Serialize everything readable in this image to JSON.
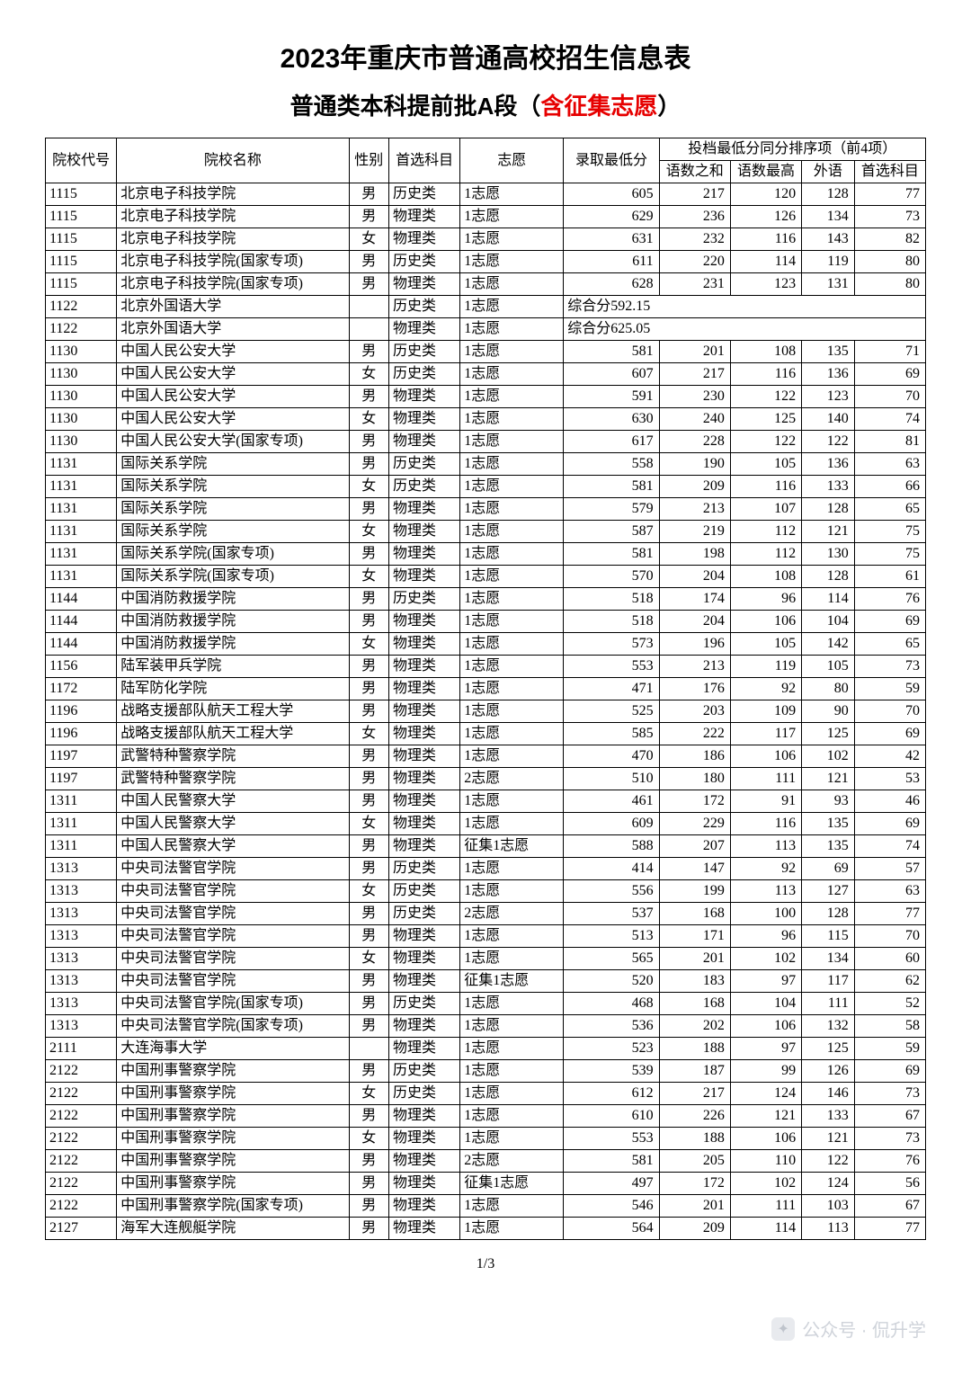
{
  "title_line1": "2023年重庆市普通高校招生信息表",
  "title_line2_prefix": "普通类本科提前批A段（",
  "title_line2_red": "含征集志愿",
  "title_line2_suffix": "）",
  "page_footer": "1/3",
  "watermark_text": "公众号 · 侃升学",
  "header": {
    "h_code": "院校代号",
    "h_name": "院校名称",
    "h_sex": "性别",
    "h_subject": "首选科目",
    "h_wish": "志愿",
    "h_score": "录取最低分",
    "h_tiebreak": "投档最低分同分排序项（前4项）",
    "h_s1": "语数之和",
    "h_s2": "语数最高",
    "h_s3": "外语",
    "h_s4": "首选科目"
  },
  "table": {
    "columns": [
      "code",
      "name",
      "sex",
      "subject",
      "wish",
      "score",
      "s1",
      "s2",
      "s3",
      "s4"
    ],
    "col_align": [
      "lft",
      "lft",
      "ctr",
      "lft",
      "lft",
      "num",
      "num",
      "num",
      "num",
      "num"
    ],
    "rows": [
      [
        "1115",
        "北京电子科技学院",
        "男",
        "历史类",
        "1志愿",
        "605",
        "217",
        "120",
        "128",
        "77"
      ],
      [
        "1115",
        "北京电子科技学院",
        "男",
        "物理类",
        "1志愿",
        "629",
        "236",
        "126",
        "134",
        "73"
      ],
      [
        "1115",
        "北京电子科技学院",
        "女",
        "物理类",
        "1志愿",
        "631",
        "232",
        "116",
        "143",
        "82"
      ],
      [
        "1115",
        "北京电子科技学院(国家专项)",
        "男",
        "历史类",
        "1志愿",
        "611",
        "220",
        "114",
        "119",
        "80"
      ],
      [
        "1115",
        "北京电子科技学院(国家专项)",
        "男",
        "物理类",
        "1志愿",
        "628",
        "231",
        "123",
        "131",
        "80"
      ],
      [
        "1130",
        "中国人民公安大学",
        "男",
        "历史类",
        "1志愿",
        "581",
        "201",
        "108",
        "135",
        "71"
      ],
      [
        "1130",
        "中国人民公安大学",
        "女",
        "历史类",
        "1志愿",
        "607",
        "217",
        "116",
        "136",
        "69"
      ],
      [
        "1130",
        "中国人民公安大学",
        "男",
        "物理类",
        "1志愿",
        "591",
        "230",
        "122",
        "123",
        "70"
      ],
      [
        "1130",
        "中国人民公安大学",
        "女",
        "物理类",
        "1志愿",
        "630",
        "240",
        "125",
        "140",
        "74"
      ],
      [
        "1130",
        "中国人民公安大学(国家专项)",
        "男",
        "物理类",
        "1志愿",
        "617",
        "228",
        "122",
        "122",
        "81"
      ],
      [
        "1131",
        "国际关系学院",
        "男",
        "历史类",
        "1志愿",
        "558",
        "190",
        "105",
        "136",
        "63"
      ],
      [
        "1131",
        "国际关系学院",
        "女",
        "历史类",
        "1志愿",
        "581",
        "209",
        "116",
        "133",
        "66"
      ],
      [
        "1131",
        "国际关系学院",
        "男",
        "物理类",
        "1志愿",
        "579",
        "213",
        "107",
        "128",
        "65"
      ],
      [
        "1131",
        "国际关系学院",
        "女",
        "物理类",
        "1志愿",
        "587",
        "219",
        "112",
        "121",
        "75"
      ],
      [
        "1131",
        "国际关系学院(国家专项)",
        "男",
        "物理类",
        "1志愿",
        "581",
        "198",
        "112",
        "130",
        "75"
      ],
      [
        "1131",
        "国际关系学院(国家专项)",
        "女",
        "物理类",
        "1志愿",
        "570",
        "204",
        "108",
        "128",
        "61"
      ],
      [
        "1144",
        "中国消防救援学院",
        "男",
        "历史类",
        "1志愿",
        "518",
        "174",
        "96",
        "114",
        "76"
      ],
      [
        "1144",
        "中国消防救援学院",
        "男",
        "物理类",
        "1志愿",
        "518",
        "204",
        "106",
        "104",
        "69"
      ],
      [
        "1144",
        "中国消防救援学院",
        "女",
        "物理类",
        "1志愿",
        "573",
        "196",
        "105",
        "142",
        "65"
      ],
      [
        "1156",
        "陆军装甲兵学院",
        "男",
        "物理类",
        "1志愿",
        "553",
        "213",
        "119",
        "105",
        "73"
      ],
      [
        "1172",
        "陆军防化学院",
        "男",
        "物理类",
        "1志愿",
        "471",
        "176",
        "92",
        "80",
        "59"
      ],
      [
        "1196",
        "战略支援部队航天工程大学",
        "男",
        "物理类",
        "1志愿",
        "525",
        "203",
        "109",
        "90",
        "70"
      ],
      [
        "1196",
        "战略支援部队航天工程大学",
        "女",
        "物理类",
        "1志愿",
        "585",
        "222",
        "117",
        "125",
        "69"
      ],
      [
        "1197",
        "武警特种警察学院",
        "男",
        "物理类",
        "1志愿",
        "470",
        "186",
        "106",
        "102",
        "42"
      ],
      [
        "1197",
        "武警特种警察学院",
        "男",
        "物理类",
        "2志愿",
        "510",
        "180",
        "111",
        "121",
        "53"
      ],
      [
        "1311",
        "中国人民警察大学",
        "男",
        "物理类",
        "1志愿",
        "461",
        "172",
        "91",
        "93",
        "46"
      ],
      [
        "1311",
        "中国人民警察大学",
        "女",
        "物理类",
        "1志愿",
        "609",
        "229",
        "116",
        "135",
        "69"
      ],
      [
        "1311",
        "中国人民警察大学",
        "男",
        "物理类",
        "征集1志愿",
        "588",
        "207",
        "113",
        "135",
        "74"
      ],
      [
        "1313",
        "中央司法警官学院",
        "男",
        "历史类",
        "1志愿",
        "414",
        "147",
        "92",
        "69",
        "57"
      ],
      [
        "1313",
        "中央司法警官学院",
        "女",
        "历史类",
        "1志愿",
        "556",
        "199",
        "113",
        "127",
        "63"
      ],
      [
        "1313",
        "中央司法警官学院",
        "男",
        "历史类",
        "2志愿",
        "537",
        "168",
        "100",
        "128",
        "77"
      ],
      [
        "1313",
        "中央司法警官学院",
        "男",
        "物理类",
        "1志愿",
        "513",
        "171",
        "96",
        "115",
        "70"
      ],
      [
        "1313",
        "中央司法警官学院",
        "女",
        "物理类",
        "1志愿",
        "565",
        "201",
        "102",
        "134",
        "60"
      ],
      [
        "1313",
        "中央司法警官学院",
        "男",
        "物理类",
        "征集1志愿",
        "520",
        "183",
        "97",
        "117",
        "62"
      ],
      [
        "1313",
        "中央司法警官学院(国家专项)",
        "男",
        "历史类",
        "1志愿",
        "468",
        "168",
        "104",
        "111",
        "52"
      ],
      [
        "1313",
        "中央司法警官学院(国家专项)",
        "男",
        "物理类",
        "1志愿",
        "536",
        "202",
        "106",
        "132",
        "58"
      ],
      [
        "2111",
        "大连海事大学",
        "",
        "物理类",
        "1志愿",
        "523",
        "188",
        "97",
        "125",
        "59"
      ],
      [
        "2122",
        "中国刑事警察学院",
        "男",
        "历史类",
        "1志愿",
        "539",
        "187",
        "99",
        "126",
        "69"
      ],
      [
        "2122",
        "中国刑事警察学院",
        "女",
        "历史类",
        "1志愿",
        "612",
        "217",
        "124",
        "146",
        "73"
      ],
      [
        "2122",
        "中国刑事警察学院",
        "男",
        "物理类",
        "1志愿",
        "610",
        "226",
        "121",
        "133",
        "67"
      ],
      [
        "2122",
        "中国刑事警察学院",
        "女",
        "物理类",
        "1志愿",
        "553",
        "188",
        "106",
        "121",
        "73"
      ],
      [
        "2122",
        "中国刑事警察学院",
        "男",
        "物理类",
        "2志愿",
        "581",
        "205",
        "110",
        "122",
        "76"
      ],
      [
        "2122",
        "中国刑事警察学院",
        "男",
        "物理类",
        "征集1志愿",
        "497",
        "172",
        "102",
        "124",
        "56"
      ],
      [
        "2122",
        "中国刑事警察学院(国家专项)",
        "男",
        "物理类",
        "1志愿",
        "546",
        "201",
        "111",
        "103",
        "67"
      ],
      [
        "2127",
        "海军大连舰艇学院",
        "男",
        "物理类",
        "1志愿",
        "564",
        "209",
        "114",
        "113",
        "77"
      ]
    ],
    "special_rows": [
      {
        "index_after": 5,
        "code": "1122",
        "name": "北京外国语大学",
        "sex": "",
        "subject": "历史类",
        "wish": "1志愿",
        "merged": "综合分592.15"
      },
      {
        "index_after": 6,
        "code": "1122",
        "name": "北京外国语大学",
        "sex": "",
        "subject": "物理类",
        "wish": "1志愿",
        "merged": "综合分625.05"
      }
    ]
  }
}
